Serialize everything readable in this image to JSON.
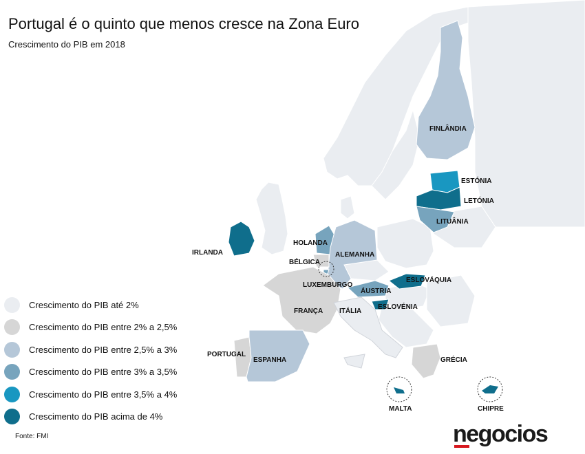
{
  "title": "Portugal é o quinto que menos cresce na Zona Euro",
  "subtitle": "Crescimento do PIB em 2018",
  "legend": [
    {
      "label": "Crescimento do PIB até 2%",
      "color": "#eaedf1"
    },
    {
      "label": "Crescimento do PIB entre 2% a 2,5%",
      "color": "#d6d6d6"
    },
    {
      "label": "Crescimento do PIB entre 2,5% a 3%",
      "color": "#b5c7d8"
    },
    {
      "label": "Crescimento do PIB entre 3% a 3,5%",
      "color": "#77a4bd"
    },
    {
      "label": "Crescimento do PIB entre 3,5% a 4%",
      "color": "#1997c1"
    },
    {
      "label": "Crescimento do PIB acima de 4%",
      "color": "#0f6e8c"
    }
  ],
  "countries": {
    "finlandia": "FINLÂNDIA",
    "estonia": "ESTÓNIA",
    "letonia": "LETÓNIA",
    "lituania": "LITUÂNIA",
    "irlanda": "IRLANDA",
    "holanda": "HOLANDA",
    "alemanha": "ALEMANHA",
    "belgica": "BÉLGICA",
    "luxemburgo": "LUXEMBURGO",
    "eslovaquia": "ESLOVÁQUIA",
    "austria": "ÁUSTRIA",
    "eslovenia": "ESLOVÉNIA",
    "franca": "FRANÇA",
    "italia": "ITÁLIA",
    "portugal": "PORTUGAL",
    "espanha": "ESPANHA",
    "grecia": "GRÉCIA",
    "malta": "MALTA",
    "chipre": "CHIPRE"
  },
  "source": "Fonte: FMI",
  "logo": "negocios"
}
